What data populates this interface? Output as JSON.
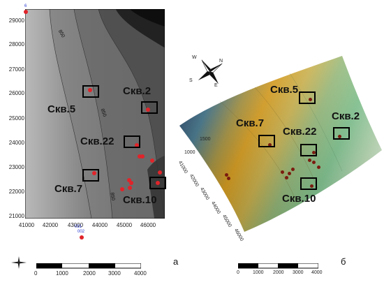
{
  "map_a": {
    "y_ticks": [
      "29000",
      "28000",
      "27000",
      "26000",
      "25000",
      "24000",
      "23000",
      "22000",
      "21000"
    ],
    "x_ticks": [
      "41000",
      "42000",
      "43000",
      "44000",
      "45000",
      "46000"
    ],
    "corner_label": "6",
    "bottom_label_1": "031",
    "bottom_label_2": "002",
    "contour_labels": [
      "850",
      "850",
      "850"
    ],
    "wells": {
      "w2": "Скв.2",
      "w5": "Скв.5",
      "w22": "Скв.22",
      "w7": "Скв.7",
      "w10": "Скв.10"
    },
    "panel_letter": "а",
    "scale_ticks": [
      "0",
      "1000",
      "2000",
      "3000",
      "4000"
    ]
  },
  "map_b": {
    "wells": {
      "w5": "Скв.5",
      "w7": "Скв.7",
      "w22": "Скв.22",
      "w2": "Скв.2",
      "w10": "Скв.10"
    },
    "axis_left": [
      "1500",
      "1000",
      "41000",
      "42000",
      "43000",
      "44000",
      "45000",
      "46000"
    ],
    "panel_letter": "б",
    "scale_ticks": [
      "0",
      "1000",
      "2000",
      "3000",
      "4000"
    ]
  },
  "compass": {
    "n": "N",
    "s": "S",
    "e": "E",
    "w": "W"
  },
  "colors": {
    "well_dot": "#e0242a",
    "frame": "#000000"
  }
}
